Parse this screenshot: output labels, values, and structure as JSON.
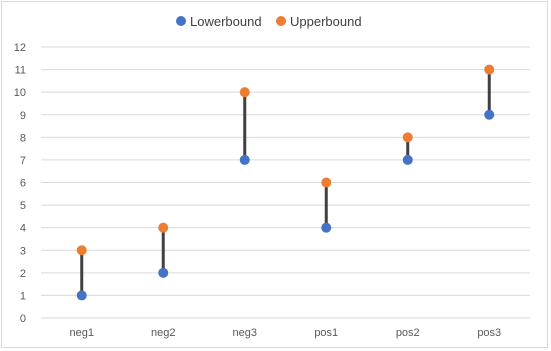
{
  "chart_data": {
    "type": "scatter",
    "subtype": "high-low range",
    "title": "",
    "xlabel": "",
    "ylabel": "",
    "categories": [
      "neg1",
      "neg2",
      "neg3",
      "pos1",
      "pos2",
      "pos3"
    ],
    "series": [
      {
        "name": "Lowerbound",
        "color": "#4472c4",
        "values": [
          1,
          2,
          7,
          4,
          7,
          9
        ]
      },
      {
        "name": "Upperbound",
        "color": "#ed7d31",
        "values": [
          3,
          4,
          10,
          6,
          8,
          11
        ]
      }
    ],
    "range_line_color": "#404040",
    "ylim": [
      0,
      12
    ],
    "yticks": [
      "0",
      "1",
      "2",
      "3",
      "4",
      "5",
      "6",
      "7",
      "8",
      "9",
      "10",
      "11",
      "12"
    ],
    "grid": true,
    "legend_position": "top"
  }
}
